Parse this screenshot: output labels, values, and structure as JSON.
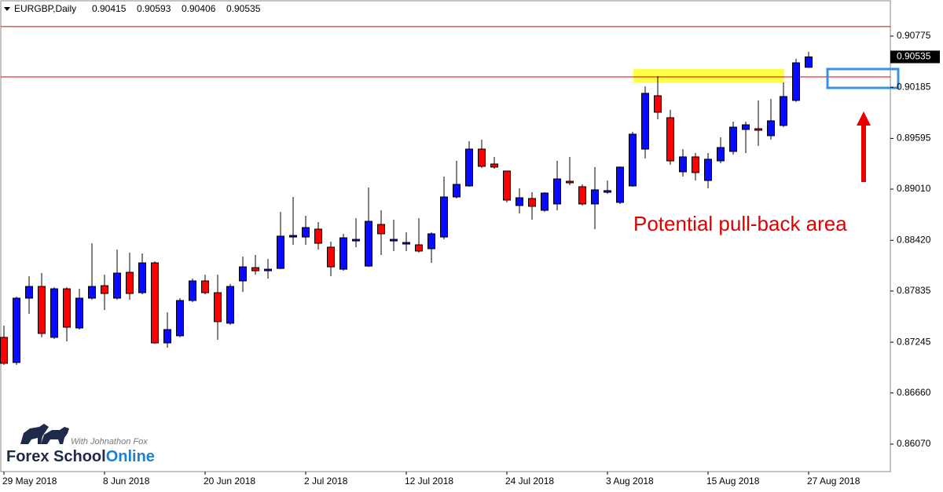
{
  "chart_data": {
    "type": "candlestick",
    "title": "EURGBP,Daily",
    "categories": [
      "29 May 2018",
      null,
      null,
      null,
      null,
      null,
      null,
      null,
      "8 Jun 2018",
      null,
      null,
      null,
      null,
      null,
      null,
      null,
      "20 Jun 2018",
      null,
      null,
      null,
      null,
      null,
      null,
      null,
      "2 Jul 2018",
      null,
      null,
      null,
      null,
      null,
      null,
      null,
      "12 Jul 2018",
      null,
      null,
      null,
      null,
      null,
      null,
      null,
      "24 Jul 2018",
      null,
      null,
      null,
      null,
      null,
      null,
      null,
      "3 Aug 2018",
      null,
      null,
      null,
      null,
      null,
      null,
      null,
      "15 Aug 2018",
      null,
      null,
      null,
      null,
      null,
      null,
      null,
      "27 Aug 2018"
    ],
    "open": [
      0.87301,
      0.87011,
      0.87753,
      0.87888,
      0.87301,
      0.87861,
      0.87409,
      0.87753,
      0.87897,
      0.87753,
      0.88051,
      0.87816,
      0.8816,
      0.87237,
      0.87319,
      0.87726,
      0.87952,
      0.87816,
      0.87464,
      0.87952,
      0.88105,
      0.88069,
      0.88096,
      0.88458,
      0.88458,
      0.88549,
      0.88341,
      0.88087,
      0.88413,
      0.88123,
      0.88603,
      0.88413,
      0.88377,
      0.88368,
      0.88323,
      0.88458,
      0.8892,
      0.89047,
      0.89472,
      0.893,
      0.89219,
      0.88821,
      0.88902,
      0.88766,
      0.88839,
      0.89101,
      0.89038,
      0.88839,
      0.88974,
      0.88857,
      0.89047,
      0.89472,
      0.90087,
      0.89834,
      0.8921,
      0.89382,
      0.8911,
      0.89336,
      0.89445,
      0.89698,
      0.89707,
      0.89626,
      0.89744,
      0.90033,
      0.90415
    ],
    "high": [
      0.87436,
      0.87771,
      0.88006,
      0.88042,
      0.87879,
      0.87879,
      0.87861,
      0.88386,
      0.88024,
      0.88314,
      0.88277,
      0.88268,
      0.88178,
      0.8759,
      0.87753,
      0.87979,
      0.88024,
      0.88024,
      0.87915,
      0.88232,
      0.8825,
      0.88205,
      0.88748,
      0.8892,
      0.88703,
      0.8863,
      0.88404,
      0.88495,
      0.88676,
      0.89029,
      0.88766,
      0.88658,
      0.88513,
      0.88676,
      0.88513,
      0.89155,
      0.89336,
      0.89562,
      0.89581,
      0.89382,
      0.89219,
      0.8902,
      0.88974,
      0.88974,
      0.89336,
      0.89382,
      0.89065,
      0.89264,
      0.8911,
      0.89273,
      0.89671,
      0.90196,
      0.90313,
      0.89925,
      0.89472,
      0.89427,
      0.89427,
      0.89608,
      0.89789,
      0.89789,
      0.90033,
      0.90051,
      0.90241,
      0.90513,
      0.90593
    ],
    "low": [
      0.86984,
      0.86984,
      0.87572,
      0.87301,
      0.87283,
      0.87255,
      0.87391,
      0.87735,
      0.87617,
      0.87735,
      0.87735,
      0.87798,
      0.87228,
      0.87183,
      0.87301,
      0.87707,
      0.87798,
      0.87273,
      0.87445,
      0.87825,
      0.88024,
      0.87979,
      0.88087,
      0.88368,
      0.88368,
      0.88314,
      0.88006,
      0.88069,
      0.88341,
      0.88114,
      0.8825,
      0.88296,
      0.88296,
      0.88277,
      0.8816,
      0.88431,
      0.88902,
      0.89038,
      0.89255,
      0.89246,
      0.88857,
      0.8873,
      0.88658,
      0.88748,
      0.88766,
      0.89056,
      0.88821,
      0.88549,
      0.88956,
      0.88839,
      0.89038,
      0.89364,
      0.89816,
      0.89291,
      0.89155,
      0.8911,
      0.8902,
      0.89309,
      0.89409,
      0.89427,
      0.89508,
      0.89581,
      0.89725,
      0.90015,
      0.90406
    ],
    "close": [
      0.87002,
      0.87753,
      0.87888,
      0.87346,
      0.87861,
      0.87418,
      0.87753,
      0.87888,
      0.87807,
      0.88042,
      0.87807,
      0.8816,
      0.87237,
      0.87391,
      0.87726,
      0.87952,
      0.87816,
      0.87482,
      0.87888,
      0.88114,
      0.88069,
      0.88087,
      0.88468,
      0.88476,
      0.88567,
      0.88386,
      0.88114,
      0.88449,
      0.88431,
      0.88639,
      0.88495,
      0.88431,
      0.88395,
      0.88296,
      0.88495,
      0.8892,
      0.89065,
      0.89472,
      0.89273,
      0.89264,
      0.88884,
      0.88911,
      0.88812,
      0.88965,
      0.89128,
      0.89083,
      0.88839,
      0.89002,
      0.88993,
      0.89264,
      0.89644,
      0.90115,
      0.89897,
      0.89336,
      0.89382,
      0.89201,
      0.89355,
      0.8949,
      0.89725,
      0.89752,
      0.89689,
      0.89798,
      0.90078,
      0.90467,
      0.90535
    ],
    "up_color": "#0a0aff",
    "down_color": "#ff0000",
    "ylim": [
      0.85753,
      0.91182
    ],
    "yticks": [
      0.90775,
      0.90185,
      0.89595,
      {
        "value": 0.8901,
        "label": "0.89010"
      },
      {
        "value": 0.8842,
        "label": "0.88420"
      },
      0.87835,
      0.87245,
      {
        "value": 0.8666,
        "label": "0.86660"
      },
      {
        "value": 0.8607,
        "label": "0.86070"
      }
    ],
    "grid": false,
    "levels": [
      0.90884,
      0.90304
    ],
    "level_color": "#e00000",
    "annotation": "Potential pull-back area",
    "watermark": {
      "tagline": "With Johnathon Fox",
      "brand": [
        "Forex School",
        "Online"
      ]
    }
  }
}
